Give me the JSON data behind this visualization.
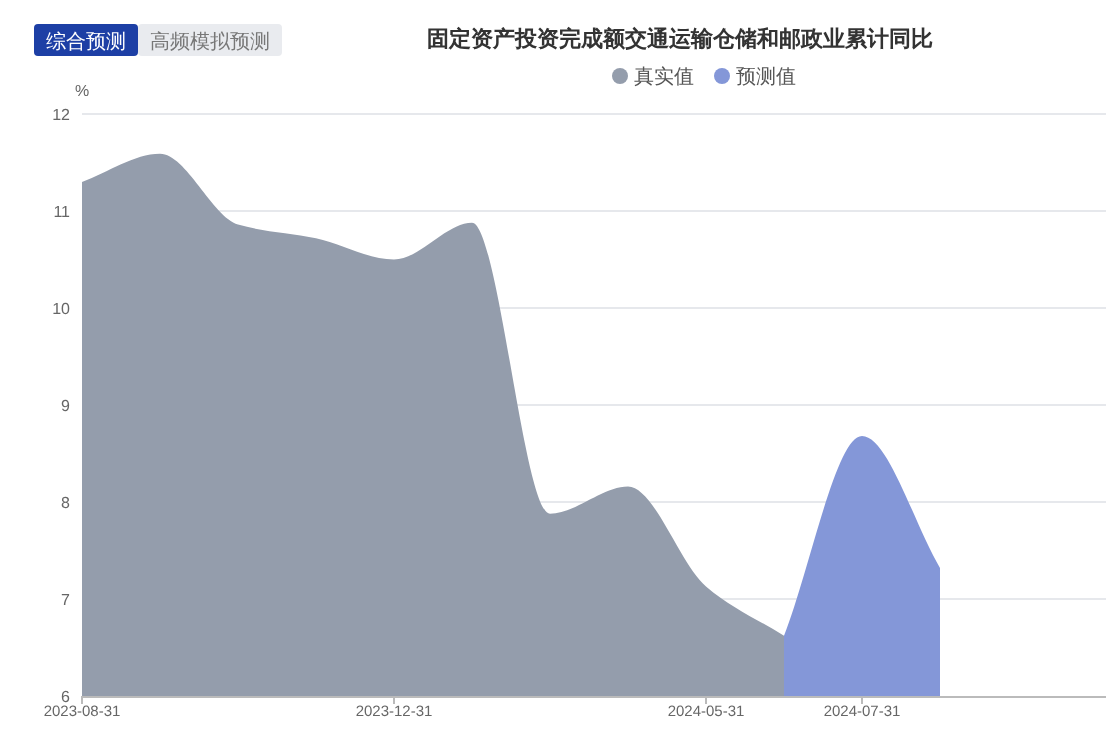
{
  "chart_data": {
    "type": "area",
    "title": "固定资产投资完成额交通运输仓储和邮政业累计同比",
    "ylabel": "%",
    "annotations": [
      "综合预测",
      "高频模拟预测"
    ],
    "categories": [
      "2023-08-31",
      null,
      null,
      null,
      "2023-12-31",
      null,
      null,
      null,
      "2024-05-31",
      null,
      "2024-07-31",
      null,
      null,
      null
    ],
    "series": [
      {
        "name": "真实值",
        "color": "#949dac",
        "values": [
          11.3,
          11.59,
          10.86,
          10.72,
          10.5,
          10.88,
          7.88,
          8.16,
          7.13,
          6.62,
          null,
          null,
          null,
          null
        ]
      },
      {
        "name": "预测值",
        "color": "#8497d8",
        "values": [
          null,
          null,
          null,
          null,
          null,
          null,
          null,
          null,
          null,
          6.62,
          8.68,
          7.32,
          null,
          null
        ]
      }
    ],
    "ylim": [
      6,
      12
    ],
    "yticks": [
      6,
      7,
      8,
      9,
      10,
      11,
      12
    ],
    "grid": "y",
    "legend": "top"
  }
}
